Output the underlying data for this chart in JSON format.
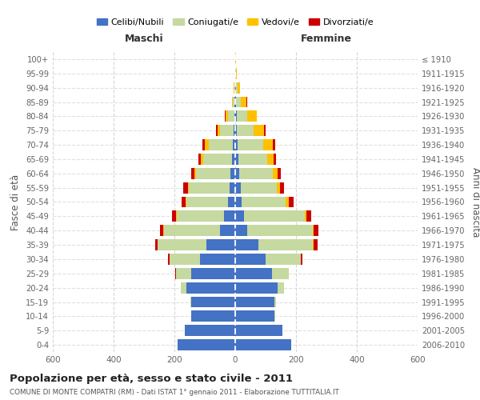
{
  "age_groups": [
    "0-4",
    "5-9",
    "10-14",
    "15-19",
    "20-24",
    "25-29",
    "30-34",
    "35-39",
    "40-44",
    "45-49",
    "50-54",
    "55-59",
    "60-64",
    "65-69",
    "70-74",
    "75-79",
    "80-84",
    "85-89",
    "90-94",
    "95-99",
    "100+"
  ],
  "birth_years": [
    "2006-2010",
    "2001-2005",
    "1996-2000",
    "1991-1995",
    "1986-1990",
    "1981-1985",
    "1976-1980",
    "1971-1975",
    "1966-1970",
    "1961-1965",
    "1956-1960",
    "1951-1955",
    "1946-1950",
    "1941-1945",
    "1936-1940",
    "1931-1935",
    "1926-1930",
    "1921-1925",
    "1916-1920",
    "1911-1915",
    "≤ 1910"
  ],
  "maschi": {
    "celibe": [
      190,
      165,
      145,
      145,
      160,
      145,
      115,
      95,
      50,
      38,
      25,
      18,
      15,
      10,
      8,
      4,
      3,
      2,
      1,
      0,
      0
    ],
    "coniugato": [
      0,
      0,
      0,
      2,
      18,
      50,
      100,
      160,
      185,
      155,
      135,
      135,
      115,
      95,
      80,
      45,
      20,
      5,
      2,
      0,
      0
    ],
    "vedovo": [
      0,
      0,
      0,
      0,
      0,
      0,
      0,
      0,
      1,
      2,
      2,
      3,
      5,
      8,
      12,
      10,
      8,
      3,
      1,
      0,
      0
    ],
    "divorziato": [
      0,
      0,
      0,
      0,
      0,
      2,
      5,
      8,
      12,
      12,
      15,
      15,
      10,
      8,
      8,
      5,
      2,
      0,
      0,
      0,
      0
    ]
  },
  "femmine": {
    "nubile": [
      185,
      155,
      130,
      130,
      140,
      120,
      100,
      75,
      40,
      30,
      22,
      18,
      14,
      10,
      8,
      5,
      5,
      3,
      2,
      1,
      0
    ],
    "coniugata": [
      0,
      0,
      2,
      5,
      20,
      55,
      115,
      180,
      215,
      200,
      145,
      120,
      110,
      95,
      85,
      55,
      35,
      15,
      5,
      2,
      1
    ],
    "vedova": [
      0,
      0,
      0,
      0,
      0,
      0,
      0,
      2,
      3,
      5,
      8,
      10,
      15,
      22,
      30,
      35,
      30,
      20,
      8,
      3,
      1
    ],
    "divorziata": [
      0,
      0,
      0,
      0,
      0,
      2,
      5,
      15,
      15,
      15,
      18,
      12,
      10,
      8,
      8,
      5,
      2,
      1,
      0,
      0,
      0
    ]
  },
  "colors": {
    "celibe": "#4472c4",
    "coniugato": "#c5d9a0",
    "vedovo": "#ffc000",
    "divorziato": "#cc0000"
  },
  "xlim": 600,
  "title": "Popolazione per età, sesso e stato civile - 2011",
  "subtitle": "COMUNE DI MONTE COMPATRI (RM) - Dati ISTAT 1° gennaio 2011 - Elaborazione TUTTITALIA.IT",
  "ylabel_left": "Fasce di età",
  "ylabel_right": "Anni di nascita",
  "xlabel_maschi": "Maschi",
  "xlabel_femmine": "Femmine"
}
